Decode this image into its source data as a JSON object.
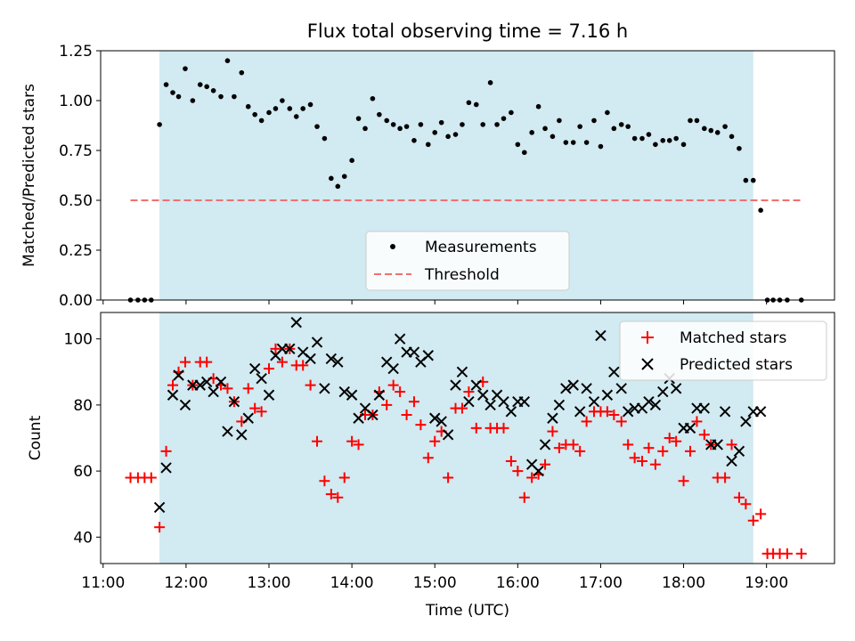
{
  "figure": {
    "title": "Flux total observing time = 7.16 h"
  },
  "colors": {
    "shade": "#add8e6",
    "measurement": "#000000",
    "threshold": "#f07070",
    "matched": "#ff0000",
    "predicted": "#000000"
  },
  "chart_data": [
    {
      "type": "scatter",
      "ylabel": "Matched/Predicted stars",
      "xlim": [
        10.97,
        19.82
      ],
      "ylim": [
        0.0,
        1.25
      ],
      "yticks": [
        "0.00",
        "0.25",
        "0.50",
        "0.75",
        "1.00",
        "1.25"
      ],
      "observing_window": [
        11.68,
        18.84
      ],
      "threshold": {
        "value": 0.5,
        "x_range": [
          11.33,
          19.42
        ]
      },
      "legend": {
        "position": "lower center",
        "entries": [
          "Measurements",
          "Threshold"
        ]
      },
      "series": [
        {
          "name": "Measurements",
          "x": [
            11.33,
            11.42,
            11.5,
            11.58,
            11.68,
            11.76,
            11.84,
            11.91,
            11.99,
            12.08,
            12.17,
            12.25,
            12.33,
            12.42,
            12.5,
            12.58,
            12.67,
            12.75,
            12.83,
            12.91,
            13.0,
            13.08,
            13.16,
            13.25,
            13.33,
            13.41,
            13.5,
            13.58,
            13.67,
            13.75,
            13.83,
            13.91,
            14.0,
            14.08,
            14.16,
            14.25,
            14.33,
            14.42,
            14.5,
            14.58,
            14.66,
            14.75,
            14.83,
            14.92,
            15.0,
            15.08,
            15.16,
            15.25,
            15.33,
            15.41,
            15.5,
            15.58,
            15.67,
            15.75,
            15.83,
            15.92,
            16.0,
            16.08,
            16.17,
            16.25,
            16.33,
            16.42,
            16.5,
            16.58,
            16.67,
            16.75,
            16.83,
            16.92,
            17.0,
            17.08,
            17.16,
            17.25,
            17.33,
            17.41,
            17.5,
            17.58,
            17.66,
            17.75,
            17.83,
            17.91,
            18.0,
            18.08,
            18.16,
            18.25,
            18.33,
            18.41,
            18.5,
            18.58,
            18.67,
            18.75,
            18.84,
            18.93,
            19.01,
            19.08,
            19.16,
            19.25,
            19.42
          ],
          "y": [
            0.0,
            0.0,
            0.0,
            0.0,
            0.88,
            1.08,
            1.04,
            1.02,
            1.16,
            1.0,
            1.08,
            1.07,
            1.05,
            1.02,
            1.2,
            1.02,
            1.14,
            0.97,
            0.93,
            0.9,
            0.94,
            0.96,
            1.0,
            0.96,
            0.92,
            0.96,
            0.98,
            0.87,
            0.81,
            0.61,
            0.57,
            0.62,
            0.7,
            0.91,
            0.86,
            1.01,
            0.93,
            0.9,
            0.88,
            0.86,
            0.87,
            0.8,
            0.88,
            0.78,
            0.84,
            0.89,
            0.82,
            0.83,
            0.88,
            0.99,
            0.98,
            0.88,
            1.09,
            0.88,
            0.91,
            0.94,
            0.78,
            0.74,
            0.84,
            0.97,
            0.86,
            0.82,
            0.9,
            0.79,
            0.79,
            0.87,
            0.79,
            0.9,
            0.77,
            0.94,
            0.86,
            0.88,
            0.87,
            0.81,
            0.81,
            0.83,
            0.78,
            0.8,
            0.8,
            0.81,
            0.78,
            0.9,
            0.9,
            0.86,
            0.85,
            0.84,
            0.87,
            0.82,
            0.76,
            0.6,
            0.6,
            0.45,
            0.0,
            0.0,
            0.0,
            0.0,
            0.0
          ]
        }
      ]
    },
    {
      "type": "scatter",
      "xlabel": "Time (UTC)",
      "ylabel": "Count",
      "xlim": [
        10.97,
        19.82
      ],
      "ylim": [
        32,
        108
      ],
      "yticks": [
        "40",
        "60",
        "80",
        "100"
      ],
      "xticks": [
        "11:00",
        "12:00",
        "13:00",
        "14:00",
        "15:00",
        "16:00",
        "17:00",
        "18:00",
        "19:00"
      ],
      "observing_window": [
        11.68,
        18.84
      ],
      "legend": {
        "position": "upper right",
        "entries": [
          "Matched stars",
          "Predicted stars"
        ]
      },
      "series": [
        {
          "name": "Matched stars",
          "marker": "+",
          "x": [
            11.33,
            11.42,
            11.5,
            11.58,
            11.68,
            11.76,
            11.84,
            11.91,
            11.99,
            12.08,
            12.17,
            12.25,
            12.33,
            12.42,
            12.5,
            12.58,
            12.67,
            12.75,
            12.83,
            12.91,
            13.0,
            13.08,
            13.16,
            13.25,
            13.33,
            13.41,
            13.5,
            13.58,
            13.67,
            13.75,
            13.83,
            13.91,
            14.0,
            14.08,
            14.16,
            14.25,
            14.33,
            14.42,
            14.5,
            14.58,
            14.66,
            14.75,
            14.83,
            14.92,
            15.0,
            15.08,
            15.16,
            15.25,
            15.33,
            15.41,
            15.5,
            15.58,
            15.67,
            15.75,
            15.83,
            15.92,
            16.0,
            16.08,
            16.17,
            16.25,
            16.33,
            16.42,
            16.5,
            16.58,
            16.67,
            16.75,
            16.83,
            16.92,
            17.0,
            17.08,
            17.16,
            17.25,
            17.33,
            17.41,
            17.5,
            17.58,
            17.66,
            17.75,
            17.83,
            17.91,
            18.0,
            18.08,
            18.16,
            18.25,
            18.33,
            18.41,
            18.5,
            18.58,
            18.67,
            18.75,
            18.84,
            18.93,
            19.01,
            19.08,
            19.16,
            19.25,
            19.42
          ],
          "y": [
            58,
            58,
            58,
            58,
            43,
            66,
            86,
            90,
            93,
            86,
            93,
            93,
            88,
            86,
            85,
            81,
            75,
            85,
            79,
            78,
            91,
            97,
            93,
            97,
            92,
            92,
            86,
            69,
            57,
            53,
            52,
            58,
            69,
            68,
            77,
            77,
            84,
            80,
            86,
            84,
            77,
            81,
            74,
            64,
            69,
            72,
            58,
            79,
            79,
            84,
            73,
            87,
            73,
            73,
            73,
            63,
            60,
            52,
            58,
            59,
            62,
            72,
            67,
            68,
            68,
            66,
            75,
            78,
            78,
            78,
            77,
            75,
            68,
            64,
            63,
            67,
            62,
            66,
            70,
            69,
            57,
            66,
            75,
            71,
            68,
            58,
            58,
            68,
            52,
            50,
            45,
            47,
            35,
            35,
            35,
            35,
            35
          ]
        },
        {
          "name": "Predicted stars",
          "marker": "x",
          "x": [
            11.68,
            11.76,
            11.84,
            11.91,
            11.99,
            12.08,
            12.17,
            12.25,
            12.33,
            12.42,
            12.5,
            12.58,
            12.67,
            12.75,
            12.83,
            12.91,
            13.0,
            13.08,
            13.16,
            13.25,
            13.33,
            13.41,
            13.5,
            13.58,
            13.67,
            13.75,
            13.83,
            13.91,
            14.0,
            14.08,
            14.16,
            14.25,
            14.33,
            14.42,
            14.5,
            14.58,
            14.66,
            14.75,
            14.83,
            14.92,
            15.0,
            15.08,
            15.16,
            15.25,
            15.33,
            15.41,
            15.5,
            15.58,
            15.67,
            15.75,
            15.83,
            15.92,
            16.0,
            16.08,
            16.17,
            16.25,
            16.33,
            16.42,
            16.5,
            16.58,
            16.67,
            16.75,
            16.83,
            16.92,
            17.0,
            17.08,
            17.16,
            17.25,
            17.33,
            17.41,
            17.5,
            17.58,
            17.66,
            17.75,
            17.83,
            17.91,
            18.0,
            18.08,
            18.16,
            18.25,
            18.33,
            18.41,
            18.5,
            18.58,
            18.67,
            18.75,
            18.84,
            18.93
          ],
          "y": [
            49,
            61,
            83,
            89,
            80,
            86,
            86,
            87,
            84,
            87,
            72,
            81,
            71,
            76,
            91,
            88,
            83,
            95,
            97,
            97,
            105,
            96,
            94,
            99,
            85,
            94,
            93,
            84,
            83,
            76,
            79,
            77,
            83,
            93,
            91,
            100,
            96,
            96,
            93,
            95,
            76,
            75,
            71,
            86,
            90,
            81,
            86,
            83,
            80,
            83,
            81,
            78,
            81,
            81,
            62,
            60,
            68,
            76,
            80,
            85,
            86,
            78,
            85,
            81,
            101,
            83,
            90,
            85,
            78,
            79,
            79,
            81,
            80,
            84,
            88,
            85,
            73,
            73,
            79,
            79,
            68,
            68,
            78,
            63,
            66,
            75,
            78,
            78
          ]
        }
      ]
    }
  ]
}
